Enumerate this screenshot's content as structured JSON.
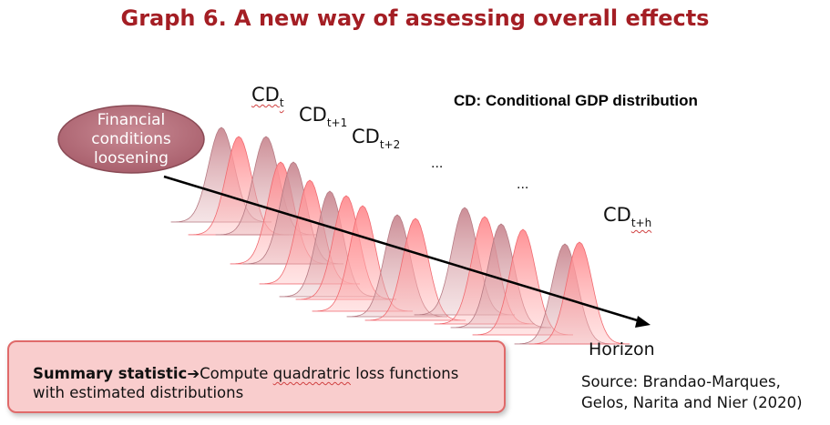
{
  "title": "Graph 6. A new way of assessing overall effects",
  "definition": "CD: Conditional GDP distribution",
  "oval": {
    "line1": "Financial",
    "line2": "conditions",
    "line3": "loosening"
  },
  "labels": {
    "cd_base": "CD",
    "sub_t": "t",
    "sub_t1": "t+1",
    "sub_t2": "t+2",
    "sub_th": "t+h",
    "ellipsis": "..."
  },
  "axis_label": "Horizon",
  "summary": {
    "bold": "Summary statistic",
    "arrow": "➔",
    "text_a": "Compute ",
    "text_b": "quadratric",
    "text_c": " loss functions with estimated distributions"
  },
  "source": {
    "line1": "Source: Brandao-Marques,",
    "line2": "Gelos, Narita and Nier (2020)"
  },
  "colors": {
    "title": "#a41e24",
    "oval_fill": "#b8737f",
    "curve_front": "#ff7b80",
    "curve_back": "#c98891",
    "summary_fill": "#f9cdcd",
    "summary_border": "#e06a6a"
  }
}
